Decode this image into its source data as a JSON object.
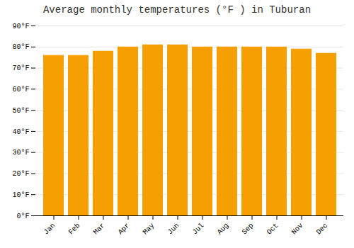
{
  "chart_data": {
    "type": "bar",
    "title": "Average monthly temperatures (°F ) in Tuburan",
    "categories": [
      "Jan",
      "Feb",
      "Mar",
      "Apr",
      "May",
      "Jun",
      "Jul",
      "Aug",
      "Sep",
      "Oct",
      "Nov",
      "Dec"
    ],
    "values": [
      76,
      76,
      78,
      80,
      81,
      81,
      80,
      80,
      80,
      80,
      79,
      77
    ],
    "color": "#F5A000",
    "ylim": [
      0,
      90
    ],
    "yticks": [
      {
        "value": 0,
        "label": "0°F"
      },
      {
        "value": 10,
        "label": "10°F"
      },
      {
        "value": 20,
        "label": "20°F"
      },
      {
        "value": 30,
        "label": "30°F"
      },
      {
        "value": 40,
        "label": "40°F"
      },
      {
        "value": 50,
        "label": "50°F"
      },
      {
        "value": 60,
        "label": "60°F"
      },
      {
        "value": 70,
        "label": "70°F"
      },
      {
        "value": 80,
        "label": "80°F"
      },
      {
        "value": 90,
        "label": "90°F"
      }
    ],
    "grid": true
  }
}
